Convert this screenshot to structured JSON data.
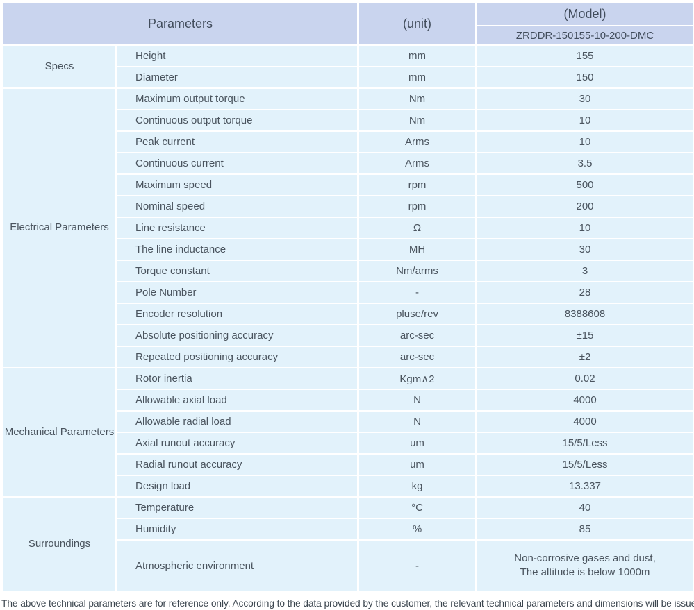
{
  "header": {
    "parameters_label": "Parameters",
    "unit_label": "(unit)",
    "model_label": "(Model)",
    "model_code": "ZRDDR-150155-10-200-DMC"
  },
  "colors": {
    "header_bg": "#c9d4ee",
    "cell_bg": "#e2f2fb",
    "text": "#4a545e",
    "grid": "#ffffff"
  },
  "sections": [
    {
      "label": "Specs",
      "rows": [
        {
          "param": "Height",
          "unit": "mm",
          "value": "155"
        },
        {
          "param": "Diameter",
          "unit": "mm",
          "value": "150"
        }
      ]
    },
    {
      "label": "Electrical Parameters",
      "rows": [
        {
          "param": "Maximum output torque",
          "unit": "Nm",
          "value": "30"
        },
        {
          "param": "Continuous output torque",
          "unit": "Nm",
          "value": "10"
        },
        {
          "param": "Peak current",
          "unit": "Arms",
          "value": "10"
        },
        {
          "param": "Continuous current",
          "unit": "Arms",
          "value": "3.5"
        },
        {
          "param": "Maximum speed",
          "unit": "rpm",
          "value": "500"
        },
        {
          "param": "Nominal speed",
          "unit": "rpm",
          "value": "200"
        },
        {
          "param": "Line resistance",
          "unit": "Ω",
          "value": "10"
        },
        {
          "param": "The line inductance",
          "unit": "MH",
          "value": "30"
        },
        {
          "param": "Torque constant",
          "unit": "Nm/arms",
          "value": "3"
        },
        {
          "param": "Pole Number",
          "unit": "-",
          "value": "28"
        },
        {
          "param": "Encoder resolution",
          "unit": "pluse/rev",
          "value": "8388608"
        },
        {
          "param": "Absolute positioning accuracy",
          "unit": "arc-sec",
          "value": "±15"
        },
        {
          "param": "Repeated positioning accuracy",
          "unit": "arc-sec",
          "value": "±2"
        }
      ]
    },
    {
      "label": "Mechanical Parameters",
      "rows": [
        {
          "param": "Rotor inertia",
          "unit": "Kgm∧2",
          "value": "0.02"
        },
        {
          "param": "Allowable axial load",
          "unit": "N",
          "value": "4000"
        },
        {
          "param": "Allowable radial load",
          "unit": "N",
          "value": "4000"
        },
        {
          "param": "Axial runout accuracy",
          "unit": "um",
          "value": "15/5/Less"
        },
        {
          "param": "Radial runout accuracy",
          "unit": "um",
          "value": "15/5/Less"
        },
        {
          "param": "Design load",
          "unit": "kg",
          "value": "13.337"
        }
      ]
    },
    {
      "label": "Surroundings",
      "rows": [
        {
          "param": "Temperature",
          "unit": "°C",
          "value": "40"
        },
        {
          "param": "Humidity",
          "unit": "%",
          "value": "85"
        },
        {
          "param": "Atmospheric environment",
          "unit": "-",
          "value": "Non-corrosive gases and dust,\nThe altitude is below 1000m"
        }
      ]
    }
  ],
  "footer": {
    "note": "The above technical parameters are for reference only. According to the data provided by the customer, the relevant technical parameters and dimensions will be issued."
  }
}
